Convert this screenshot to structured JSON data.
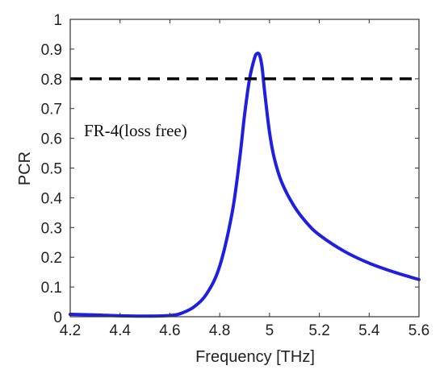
{
  "chart_data": {
    "type": "line",
    "xlabel": "Frequency [THz]",
    "ylabel": "PCR",
    "xlim": [
      4.2,
      5.6
    ],
    "ylim": [
      0,
      1
    ],
    "xticks": [
      "4.2",
      "4.4",
      "4.6",
      "4.8",
      "5",
      "5.2",
      "5.4",
      "5.6"
    ],
    "yticks": [
      "0",
      "0.1",
      "0.2",
      "0.3",
      "0.4",
      "0.5",
      "0.6",
      "0.7",
      "0.8",
      "0.9",
      "1"
    ],
    "grid": false,
    "annotation": "FR-4(loss free)",
    "series": [
      {
        "style": "solid",
        "color": "#1f1fe0",
        "x": [
          4.2,
          4.3,
          4.4,
          4.5,
          4.6,
          4.65,
          4.7,
          4.75,
          4.8,
          4.85,
          4.88,
          4.9,
          4.92,
          4.94,
          4.95,
          4.96,
          4.97,
          4.98,
          5.0,
          5.02,
          5.05,
          5.1,
          5.15,
          5.2,
          5.3,
          5.4,
          5.5,
          5.6
        ],
        "y": [
          0.008,
          0.006,
          0.003,
          0.002,
          0.004,
          0.013,
          0.035,
          0.08,
          0.17,
          0.35,
          0.53,
          0.68,
          0.8,
          0.87,
          0.885,
          0.88,
          0.84,
          0.76,
          0.62,
          0.53,
          0.45,
          0.37,
          0.315,
          0.275,
          0.22,
          0.18,
          0.15,
          0.125
        ]
      },
      {
        "style": "dashed",
        "color": "#000000",
        "x": [
          4.2,
          5.6
        ],
        "y": [
          0.8,
          0.8
        ]
      }
    ]
  }
}
